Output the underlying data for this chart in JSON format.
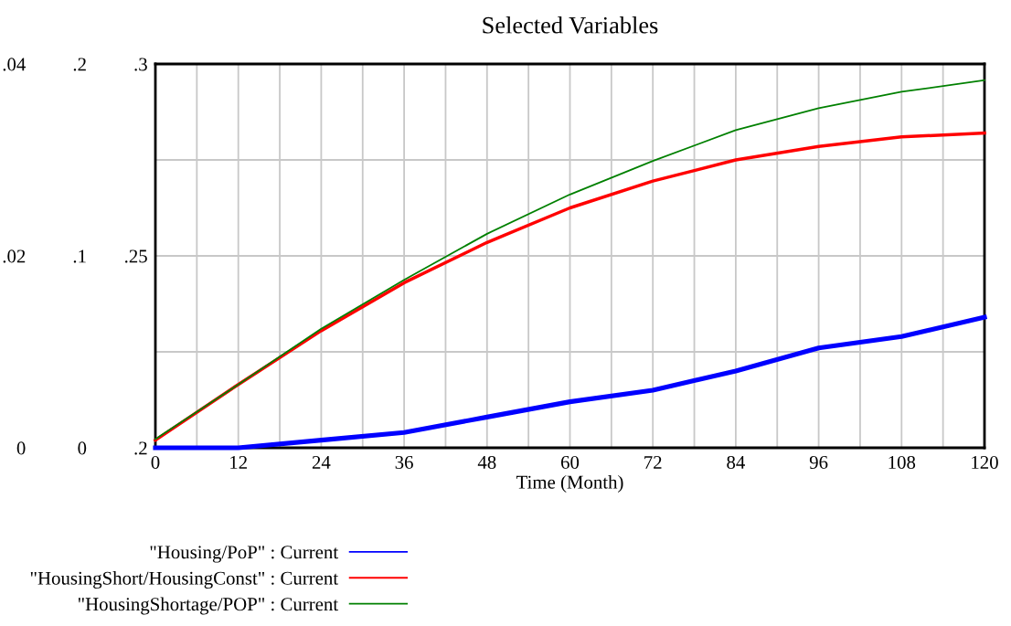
{
  "chart_data": {
    "type": "line",
    "title": "Selected Variables",
    "xlabel": "Time (Month)",
    "x": [
      0,
      12,
      24,
      36,
      48,
      60,
      72,
      84,
      96,
      108,
      120
    ],
    "xlim": [
      0,
      120
    ],
    "xticks": [
      0,
      {
        "value": 6,
        "label": null
      },
      12,
      {
        "value": 18,
        "label": null
      },
      24,
      {
        "value": 30,
        "label": null
      },
      36,
      {
        "value": 42,
        "label": null
      },
      48,
      {
        "value": 54,
        "label": null
      },
      60,
      {
        "value": 66,
        "label": null
      },
      72,
      {
        "value": 78,
        "label": null
      },
      84,
      {
        "value": 90,
        "label": null
      },
      96,
      {
        "value": 102,
        "label": null
      },
      108,
      {
        "value": 114,
        "label": null
      },
      120
    ],
    "ylim": [
      0.2,
      0.3
    ],
    "yticks": [
      {
        "value": 0.2,
        "label": ".2"
      },
      {
        "value": 0.225,
        "label": null
      },
      {
        "value": 0.25,
        "label": ".25"
      },
      {
        "value": 0.275,
        "label": null
      },
      {
        "value": 0.3,
        "label": ".3"
      }
    ],
    "y2lim": [
      0,
      0.2
    ],
    "y2ticks": [
      {
        "value": 0,
        "label": "0"
      },
      {
        "value": 0.1,
        "label": ".1"
      },
      {
        "value": 0.2,
        "label": ".2"
      }
    ],
    "y3lim": [
      0,
      0.04
    ],
    "y3ticks": [
      {
        "value": 0,
        "label": "0"
      },
      {
        "value": 0.02,
        "label": ".02"
      },
      {
        "value": 0.04,
        "label": ".04"
      }
    ],
    "grid": true,
    "legend": "bottom",
    "marker": "none",
    "line_style": "solid",
    "series": [
      {
        "name": "\"Housing/PoP\" : Current",
        "color": "#0000ff",
        "axis": "y",
        "values": [
          0.2,
          0.2,
          0.202,
          0.204,
          0.208,
          0.212,
          0.215,
          0.22,
          0.226,
          0.229,
          0.234
        ]
      },
      {
        "name": "\"HousingShort/HousingConst\" : Current",
        "color": "#ff0000",
        "axis": "y2",
        "values": [
          0.004,
          0.033,
          0.061,
          0.086,
          0.107,
          0.125,
          0.139,
          0.15,
          0.157,
          0.162,
          0.164
        ]
      },
      {
        "name": "\"HousingShortage/POP\" : Current",
        "color": "#008000",
        "axis": "y3",
        "values": [
          0.0009,
          0.0066,
          0.0124,
          0.0175,
          0.0223,
          0.0264,
          0.0299,
          0.0331,
          0.0354,
          0.0371,
          0.0383
        ]
      }
    ]
  }
}
